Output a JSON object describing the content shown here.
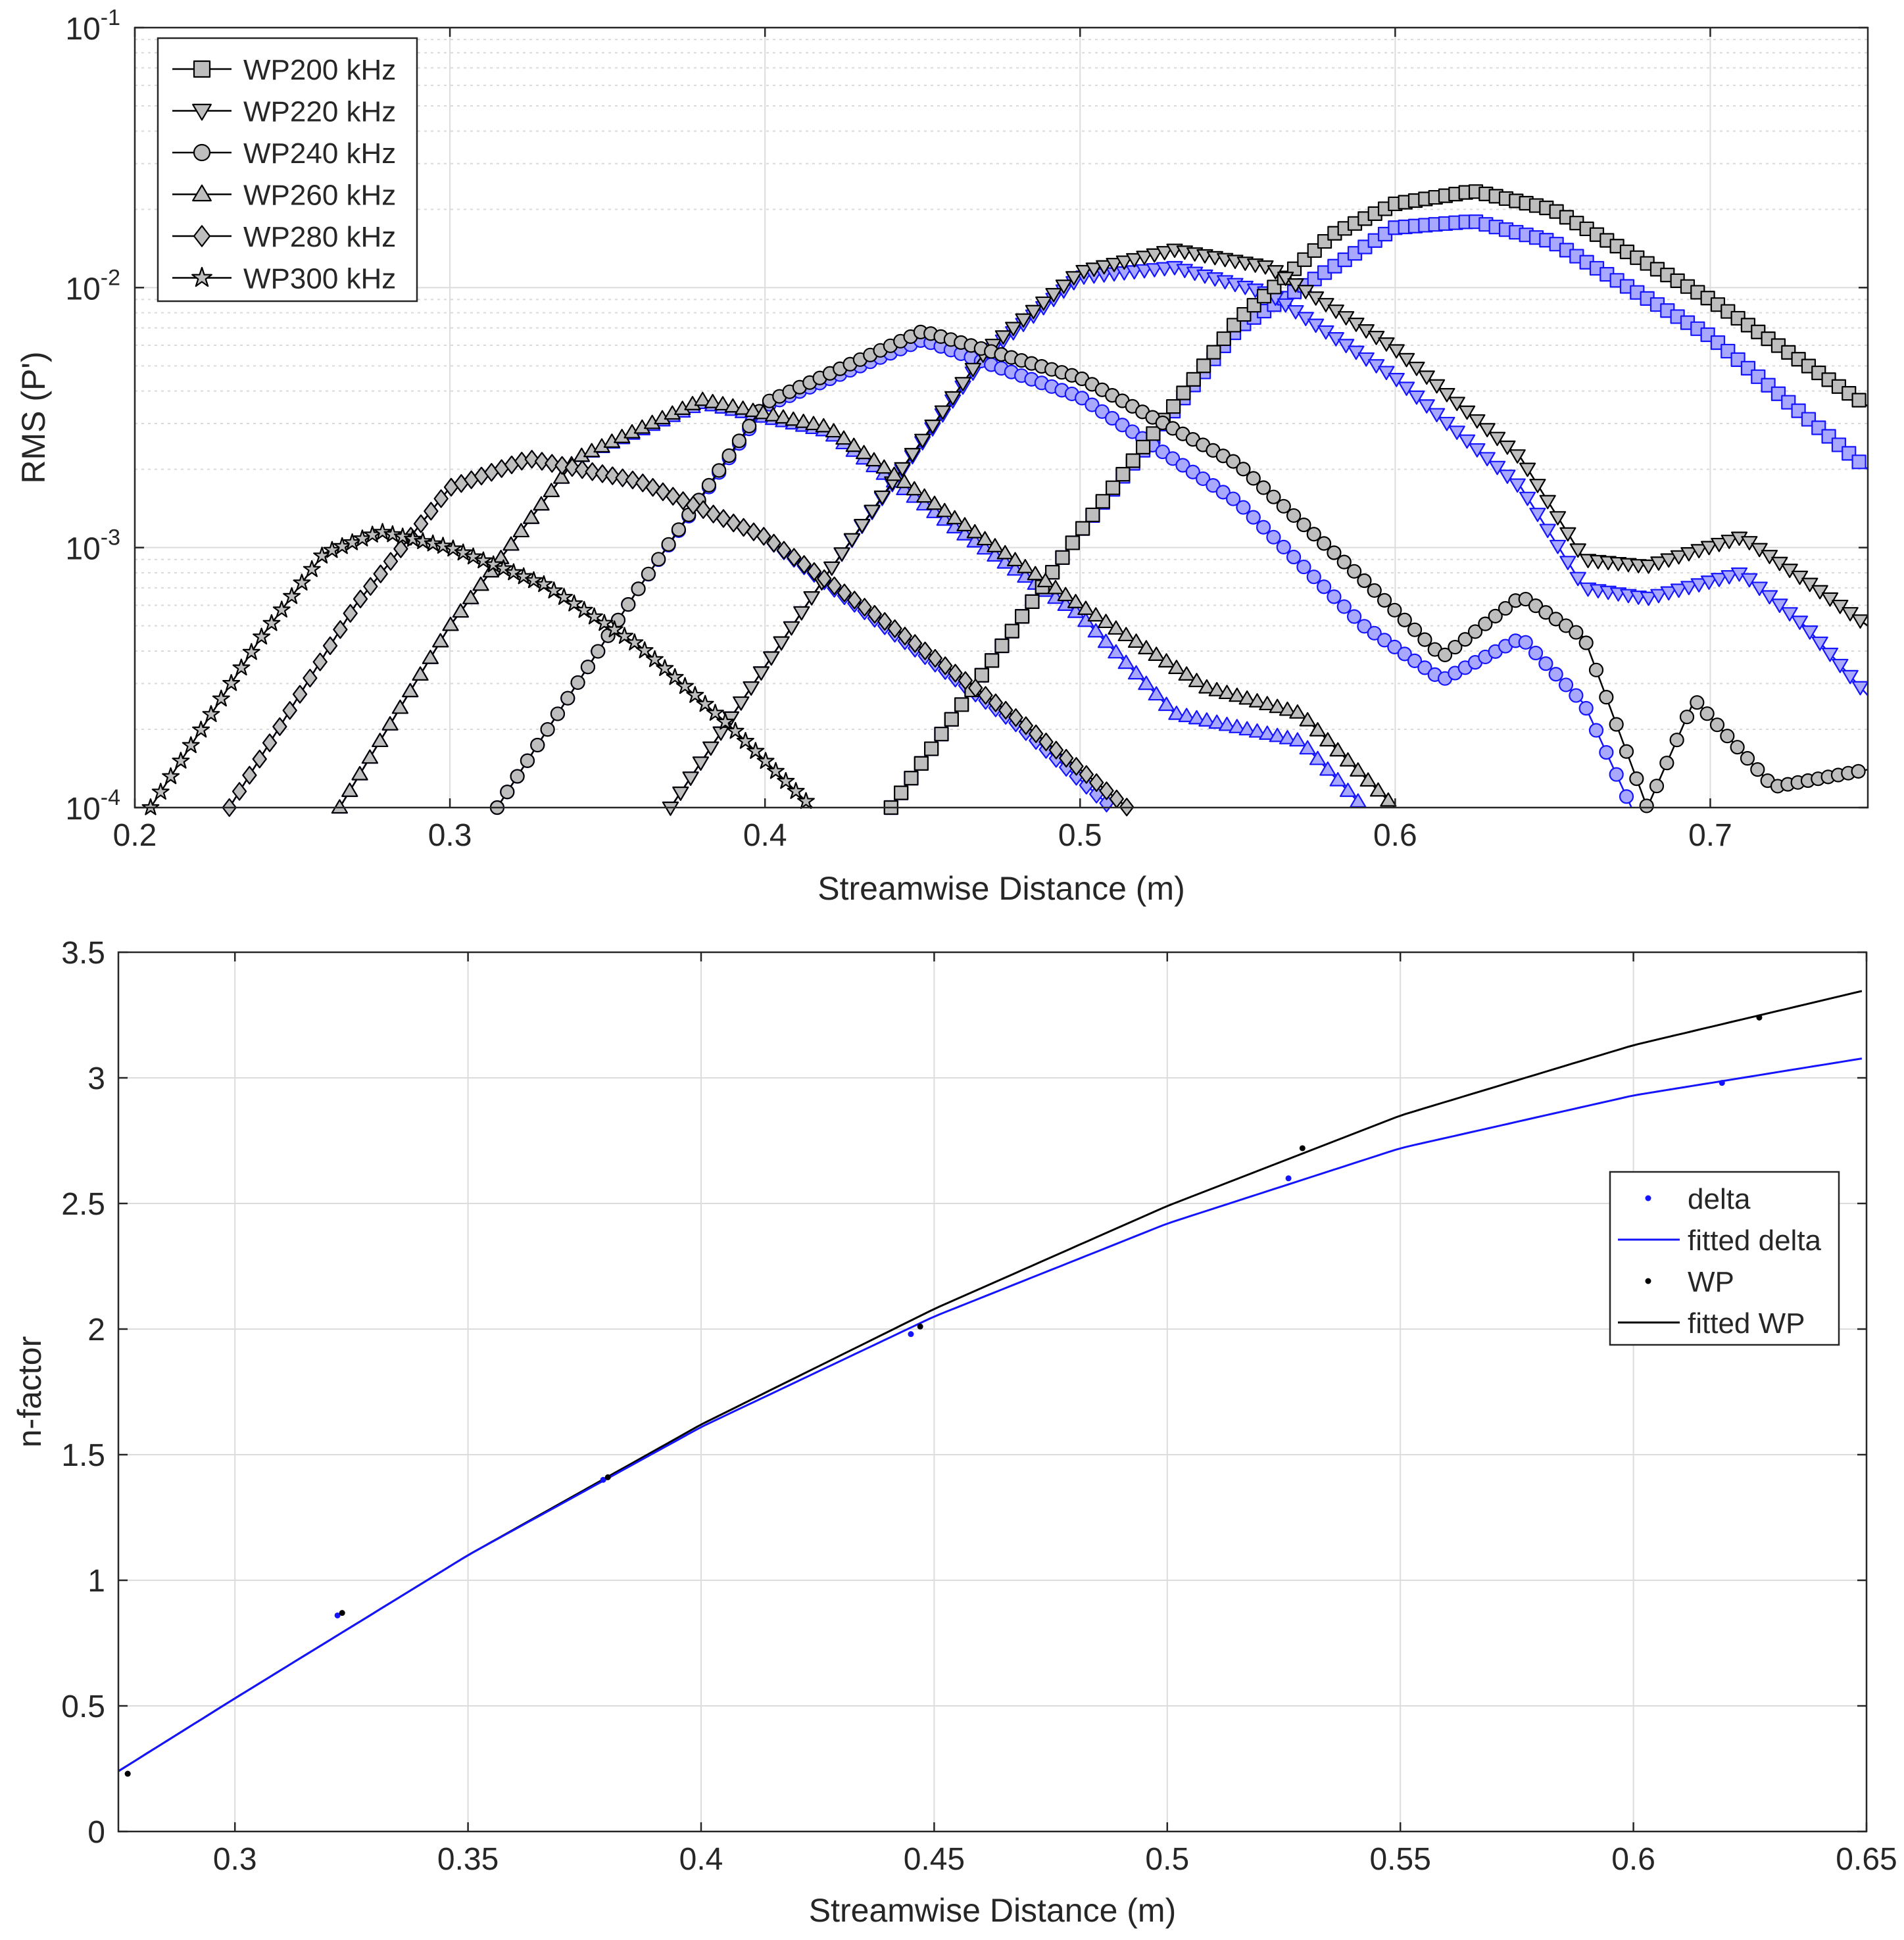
{
  "chart_data": [
    {
      "type": "line",
      "title": "",
      "xlabel": "Streamwise Distance (m)",
      "ylabel": "RMS (P')",
      "yscale": "log",
      "xlim": [
        0.2,
        0.75
      ],
      "ylim": [
        0.0001,
        0.1
      ],
      "grid": true,
      "minor_grid": true,
      "legend_position": "top-left",
      "x_ticks": [
        "0.2",
        "0.3",
        "0.4",
        "0.5",
        "0.6",
        "0.7"
      ],
      "y_ticks": [
        {
          "base": "10",
          "exp": "-1"
        },
        {
          "base": "10",
          "exp": "-2"
        },
        {
          "base": "10",
          "exp": "-3"
        },
        {
          "base": "10",
          "exp": "-4"
        }
      ],
      "series": [
        {
          "name": "WP200 kHz",
          "marker": "square",
          "color": "#000000",
          "face": "#bebebe",
          "x": [
            0.44,
            0.5,
            0.55,
            0.58,
            0.6,
            0.625,
            0.65,
            0.7,
            0.75
          ],
          "y": [
            0.0001,
            0.00115,
            0.0075,
            0.016,
            0.021,
            0.0235,
            0.02,
            0.009,
            0.0035
          ]
        },
        {
          "name": "WP220 kHz",
          "marker": "triangle-down",
          "color": "#000000",
          "face": "#bebebe",
          "x": [
            0.37,
            0.42,
            0.47,
            0.5,
            0.53,
            0.56,
            0.6,
            0.64,
            0.66,
            0.68,
            0.71,
            0.73,
            0.75
          ],
          "y": [
            0.0001,
            0.0008,
            0.0057,
            0.0115,
            0.014,
            0.012,
            0.0058,
            0.0022,
            0.0009,
            0.00085,
            0.0011,
            0.00075,
            0.0005
          ]
        },
        {
          "name": "WP240 kHz",
          "marker": "circle",
          "color": "#000000",
          "face": "#bebebe",
          "x": [
            0.315,
            0.36,
            0.4,
            0.45,
            0.5,
            0.55,
            0.59,
            0.615,
            0.64,
            0.66,
            0.68,
            0.695,
            0.72,
            0.75
          ],
          "y": [
            0.0001,
            0.0007,
            0.0036,
            0.0068,
            0.0045,
            0.0021,
            0.00075,
            0.00038,
            0.00065,
            0.00045,
            0.0001,
            0.00026,
            0.00012,
            0.00014
          ]
        },
        {
          "name": "WP260 kHz",
          "marker": "triangle-up",
          "color": "#000000",
          "face": "#bebebe",
          "x": [
            0.265,
            0.3,
            0.34,
            0.38,
            0.42,
            0.46,
            0.5,
            0.54,
            0.57,
            0.6
          ],
          "y": [
            0.0001,
            0.0005,
            0.0022,
            0.0037,
            0.0029,
            0.0013,
            0.0006,
            0.00029,
            0.00023,
            0.0001
          ]
        },
        {
          "name": "WP280 kHz",
          "marker": "diamond",
          "color": "#000000",
          "face": "#bebebe",
          "x": [
            0.23,
            0.27,
            0.3,
            0.325,
            0.36,
            0.4,
            0.44,
            0.48,
            0.515
          ],
          "y": [
            0.0001,
            0.0006,
            0.0017,
            0.0022,
            0.0018,
            0.0011,
            0.0005,
            0.00022,
            0.0001
          ]
        },
        {
          "name": "WP300 kHz",
          "marker": "star",
          "color": "#000000",
          "face": "#bebebe",
          "x": [
            0.205,
            0.24,
            0.26,
            0.278,
            0.3,
            0.33,
            0.36,
            0.39,
            0.415
          ],
          "y": [
            0.0001,
            0.00045,
            0.00095,
            0.00115,
            0.001,
            0.00072,
            0.00042,
            0.0002,
            0.0001
          ]
        },
        {
          "name": "WP200 kHz (delta)",
          "marker": "square",
          "color": "#1414ff",
          "face": "#a8a8ff",
          "x": [
            0.44,
            0.5,
            0.55,
            0.6,
            0.625,
            0.65,
            0.7,
            0.75
          ],
          "y": [
            0.0001,
            0.00115,
            0.007,
            0.017,
            0.018,
            0.015,
            0.0065,
            0.002
          ]
        },
        {
          "name": "WP220 kHz (delta)",
          "marker": "triangle-down",
          "color": "#1414ff",
          "face": "#a8a8ff",
          "x": [
            0.37,
            0.42,
            0.47,
            0.5,
            0.53,
            0.56,
            0.6,
            0.64,
            0.66,
            0.68,
            0.71,
            0.73,
            0.75
          ],
          "y": [
            0.0001,
            0.0008,
            0.0055,
            0.011,
            0.012,
            0.0095,
            0.0045,
            0.0017,
            0.0007,
            0.00064,
            0.0008,
            0.0005,
            0.00027
          ]
        },
        {
          "name": "WP240 kHz (delta)",
          "marker": "circle",
          "color": "#1414ff",
          "face": "#a8a8ff",
          "x": [
            0.315,
            0.36,
            0.4,
            0.45,
            0.5,
            0.55,
            0.59,
            0.615,
            0.64,
            0.66,
            0.675
          ],
          "y": [
            0.0001,
            0.0007,
            0.0035,
            0.0063,
            0.0038,
            0.0015,
            0.0005,
            0.00031,
            0.00045,
            0.00025,
            0.0001
          ]
        },
        {
          "name": "WP260 kHz (delta)",
          "marker": "triangle-up",
          "color": "#1414ff",
          "face": "#a8a8ff",
          "x": [
            0.265,
            0.3,
            0.34,
            0.38,
            0.42,
            0.46,
            0.5,
            0.53,
            0.57,
            0.59
          ],
          "y": [
            0.0001,
            0.0005,
            0.0022,
            0.0036,
            0.0028,
            0.0012,
            0.00055,
            0.00023,
            0.00018,
            0.0001
          ]
        },
        {
          "name": "WP280 kHz (delta)",
          "marker": "diamond",
          "color": "#1414ff",
          "face": "#a8a8ff",
          "x": [
            0.23,
            0.27,
            0.3,
            0.325,
            0.36,
            0.4,
            0.44,
            0.48,
            0.51
          ],
          "y": [
            0.0001,
            0.0006,
            0.0017,
            0.0022,
            0.0018,
            0.0011,
            0.00048,
            0.00021,
            0.0001
          ]
        }
      ]
    },
    {
      "type": "line",
      "title": "",
      "xlabel": "Streamwise Distance (m)",
      "ylabel": "n-factor",
      "xlim": [
        0.275,
        0.65
      ],
      "ylim": [
        0,
        3.5
      ],
      "grid": true,
      "legend_position": "right",
      "x_ticks": [
        "0.3",
        "0.35",
        "0.4",
        "0.45",
        "0.5",
        "0.55",
        "0.6",
        "0.65"
      ],
      "y_ticks": [
        "0",
        "0.5",
        "1",
        "1.5",
        "2",
        "2.5",
        "3",
        "3.5"
      ],
      "series": [
        {
          "name": "delta",
          "style": "points",
          "color": "#1414ff",
          "x": [
            0.277,
            0.322,
            0.379,
            0.445,
            0.526,
            0.619
          ],
          "y": [
            0.23,
            0.86,
            1.4,
            1.98,
            2.6,
            2.98
          ]
        },
        {
          "name": "fitted delta",
          "style": "line",
          "color": "#1414ff",
          "x": [
            0.275,
            0.3,
            0.35,
            0.4,
            0.45,
            0.5,
            0.55,
            0.6,
            0.65
          ],
          "y": [
            0.24,
            0.53,
            1.1,
            1.61,
            2.05,
            2.42,
            2.72,
            2.93,
            3.08
          ]
        },
        {
          "name": "WP",
          "style": "points",
          "color": "#000000",
          "x": [
            0.277,
            0.323,
            0.38,
            0.447,
            0.529,
            0.627
          ],
          "y": [
            0.23,
            0.87,
            1.41,
            2.01,
            2.72,
            3.24
          ]
        },
        {
          "name": "fitted WP",
          "style": "line",
          "color": "#000000",
          "x": [
            0.275,
            0.3,
            0.35,
            0.4,
            0.45,
            0.5,
            0.55,
            0.6,
            0.65
          ],
          "y": [
            0.24,
            0.53,
            1.1,
            1.62,
            2.08,
            2.49,
            2.85,
            3.13,
            3.35
          ]
        }
      ]
    }
  ]
}
